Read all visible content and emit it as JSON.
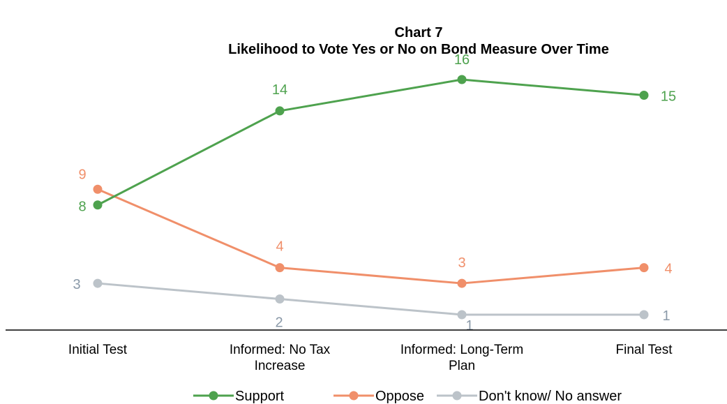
{
  "chart_data": {
    "type": "line",
    "title_line1": "Chart 7",
    "title_line2": "Likelihood to Vote Yes or No on Bond Measure Over Time",
    "categories": [
      [
        "Initial Test"
      ],
      [
        "Informed: No Tax",
        "Increase"
      ],
      [
        "Informed: Long-Term",
        "Plan"
      ],
      [
        "Final Test"
      ]
    ],
    "series": [
      {
        "name": "Support",
        "color": "#4ea24e",
        "label_color": "#4ea24e",
        "values": [
          8,
          14,
          16,
          15
        ]
      },
      {
        "name": "Oppose",
        "color": "#f08f6a",
        "label_color": "#f08f6a",
        "values": [
          9,
          4,
          3,
          4
        ]
      },
      {
        "name": "Don't know/ No answer",
        "color": "#bcc3c9",
        "label_color": "#8a99a8",
        "values": [
          3,
          2,
          1,
          1
        ]
      }
    ],
    "ylim": [
      1,
      16
    ],
    "grid": false,
    "legend_position": "bottom"
  }
}
